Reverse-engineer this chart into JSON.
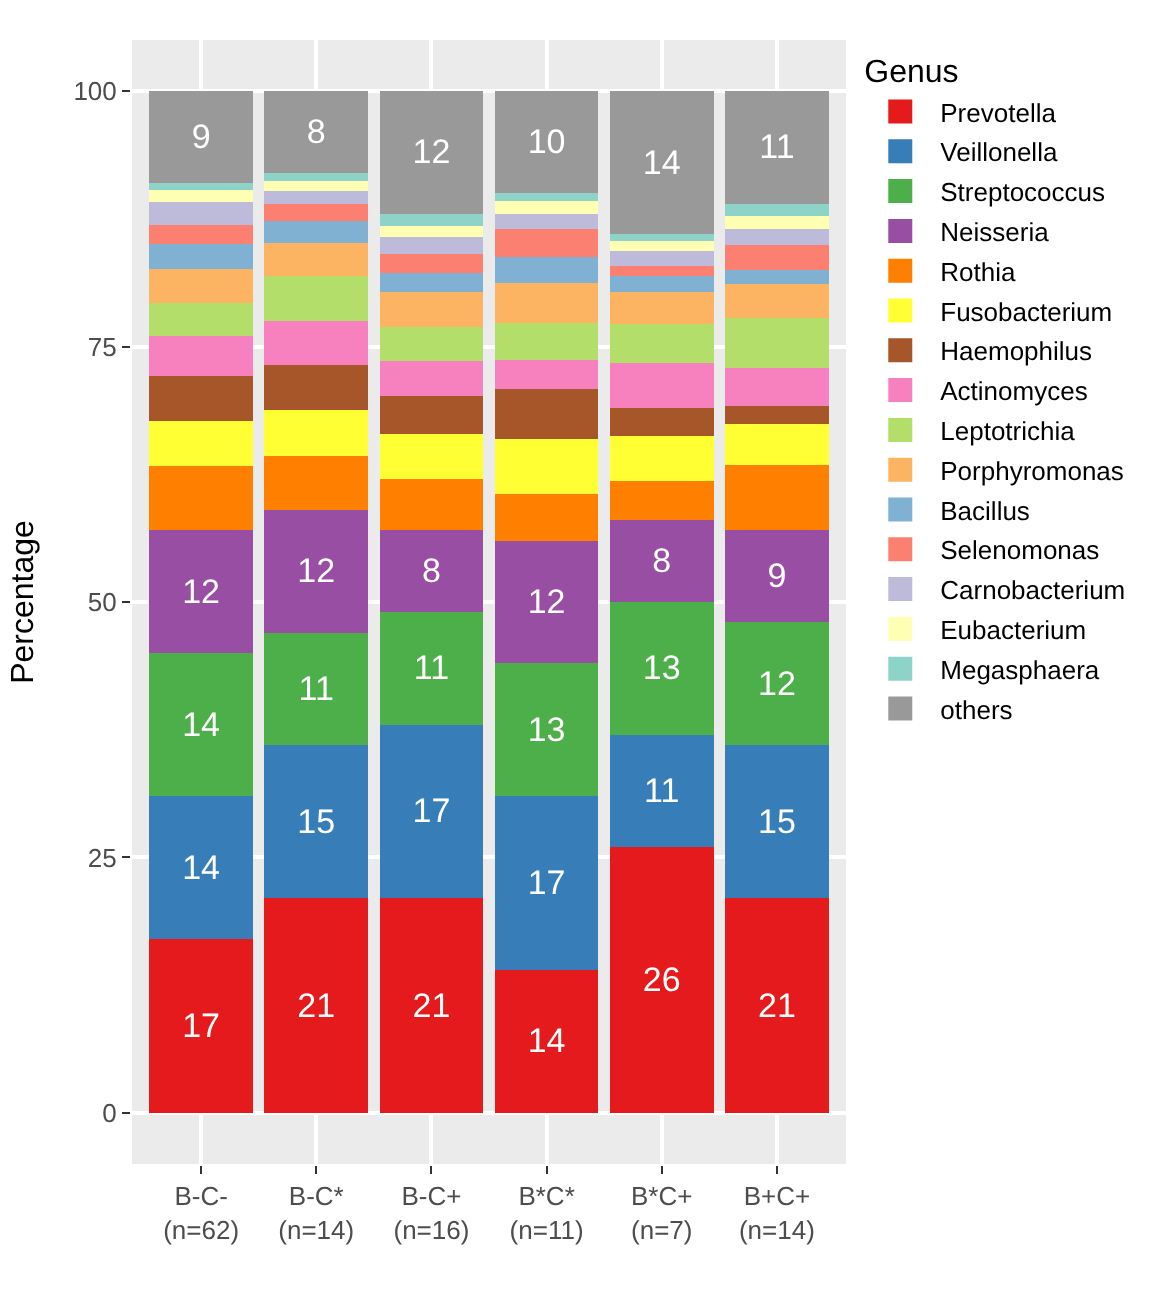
{
  "chart_data": {
    "type": "bar",
    "stacked": true,
    "categories": [
      "B-C-\n(n=62)",
      "B-C*\n(n=14)",
      "B-C+\n(n=16)",
      "B*C*\n(n=11)",
      "B*C+\n(n=7)",
      "B+C+\n(n=14)"
    ],
    "ylabel": "Percentage",
    "legend_title": "Genus",
    "ylim": [
      -5,
      105
    ],
    "yticks": [
      0,
      25,
      50,
      75,
      100
    ],
    "grid": true,
    "legend": "right",
    "series": [
      {
        "name": "Prevotella",
        "color": "#e41a1c",
        "values": [
          17,
          21,
          21,
          14,
          26,
          21
        ],
        "value_labels": [
          "17",
          "21",
          "21",
          "14",
          "26",
          "21"
        ]
      },
      {
        "name": "Veillonella",
        "color": "#377eb8",
        "values": [
          14,
          15,
          17,
          17,
          11,
          15
        ],
        "value_labels": [
          "14",
          "15",
          "17",
          "17",
          "11",
          "15"
        ]
      },
      {
        "name": "Streptococcus",
        "color": "#4daf4a",
        "values": [
          14,
          11,
          11,
          13,
          13,
          12
        ],
        "value_labels": [
          "14",
          "11",
          "11",
          "13",
          "13",
          "12"
        ]
      },
      {
        "name": "Neisseria",
        "color": "#984ea3",
        "values": [
          12,
          12,
          8,
          12,
          8,
          9
        ],
        "value_labels": [
          "12",
          "12",
          "8",
          "12",
          "8",
          "9"
        ]
      },
      {
        "name": "Rothia",
        "color": "#ff7f00",
        "values": [
          6.3,
          5.3,
          5.0,
          4.6,
          3.8,
          6.4
        ]
      },
      {
        "name": "Fusobacterium",
        "color": "#ffff33",
        "values": [
          4.4,
          4.5,
          4.4,
          5.4,
          4.4,
          4.0
        ]
      },
      {
        "name": "Haemophilus",
        "color": "#a65628",
        "values": [
          4.4,
          4.4,
          3.8,
          4.8,
          2.8,
          1.8
        ]
      },
      {
        "name": "Actinomyces",
        "color": "#f781bf",
        "values": [
          3.9,
          4.3,
          3.4,
          2.9,
          4.4,
          3.7
        ]
      },
      {
        "name": "Leptotrichia",
        "color": "#b3de69",
        "values": [
          3.3,
          4.4,
          3.3,
          3.6,
          3.8,
          4.9
        ]
      },
      {
        "name": "Porphyromonas",
        "color": "#fdb462",
        "values": [
          3.3,
          3.2,
          3.4,
          3.9,
          3.1,
          3.3
        ]
      },
      {
        "name": "Bacillus",
        "color": "#80b1d3",
        "values": [
          2.4,
          2.2,
          1.9,
          2.6,
          1.6,
          1.4
        ]
      },
      {
        "name": "Selenomonas",
        "color": "#fb8072",
        "values": [
          1.9,
          1.7,
          1.9,
          2.7,
          1.0,
          2.4
        ]
      },
      {
        "name": "Carnobacterium",
        "color": "#bebada",
        "values": [
          2.2,
          1.2,
          1.6,
          1.5,
          1.5,
          1.6
        ]
      },
      {
        "name": "Eubacterium",
        "color": "#ffffb3",
        "values": [
          1.2,
          1.0,
          1.1,
          1.2,
          0.9,
          1.3
        ]
      },
      {
        "name": "Megasphaera",
        "color": "#8dd3c7",
        "values": [
          0.7,
          0.8,
          1.2,
          0.8,
          0.7,
          1.2
        ]
      },
      {
        "name": "others",
        "color": "#999999",
        "values": [
          9,
          8,
          12,
          10,
          14,
          11
        ],
        "value_labels": [
          "9",
          "8",
          "12",
          "10",
          "14",
          "11"
        ]
      }
    ]
  }
}
